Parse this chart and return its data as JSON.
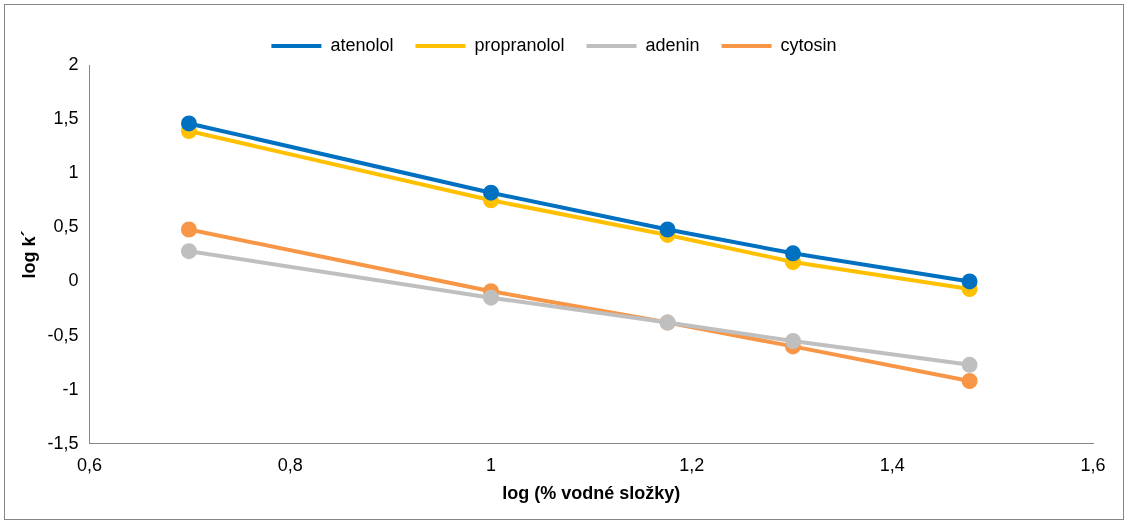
{
  "chart_data": {
    "type": "line",
    "xlabel": "log (% vodné složky)",
    "ylabel": "log k´",
    "x": [
      0.699,
      1,
      1.176,
      1.301,
      1.477
    ],
    "series": [
      {
        "name": "atenolol",
        "color": "#0070c0",
        "values": [
          1.46,
          0.82,
          0.48,
          0.26,
          0.0
        ]
      },
      {
        "name": "propranolol",
        "color": "#ffc000",
        "values": [
          1.39,
          0.75,
          0.43,
          0.18,
          -0.07
        ]
      },
      {
        "name": "adenin",
        "color": "#bfbfbf",
        "values": [
          0.28,
          -0.15,
          -0.38,
          -0.55,
          -0.77
        ]
      },
      {
        "name": "cytosin",
        "color": "#f79646",
        "values": [
          0.48,
          -0.09,
          -0.38,
          -0.6,
          -0.92
        ]
      }
    ],
    "xlim": [
      0.6,
      1.6
    ],
    "xticks": [
      {
        "value": 0.6,
        "label": "0,6"
      },
      {
        "value": 0.8,
        "label": "0,8"
      },
      {
        "value": 1,
        "label": "1"
      },
      {
        "value": 1.2,
        "label": "1,2"
      },
      {
        "value": 1.4,
        "label": "1,4"
      },
      {
        "value": 1.6,
        "label": "1,6"
      }
    ],
    "ylim": [
      -1.5,
      2
    ],
    "yticks": [
      {
        "value": -1.5,
        "label": "-1,5"
      },
      {
        "value": -1,
        "label": "-1"
      },
      {
        "value": -0.5,
        "label": "-0,5"
      },
      {
        "value": 0,
        "label": "0"
      },
      {
        "value": 0.5,
        "label": "0,5"
      },
      {
        "value": 1,
        "label": "1"
      },
      {
        "value": 1.5,
        "label": "1,5"
      },
      {
        "value": 2,
        "label": "2"
      }
    ],
    "grid": false,
    "legend": "top",
    "marker": "circle",
    "line_style": "solid"
  }
}
